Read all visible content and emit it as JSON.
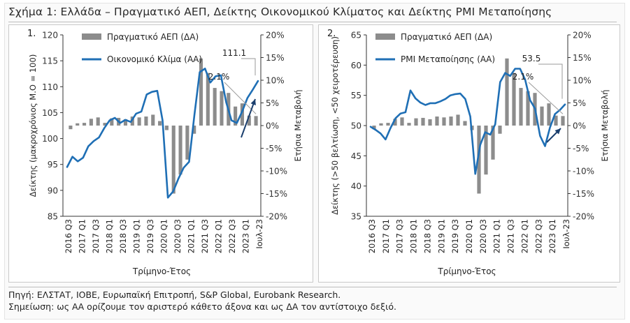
{
  "title": "Σχήμα 1: Ελλάδα – Πραγματικό ΑΕΠ, Δείκτης Οικονομικού Κλίματος και Δείκτης PMI Μεταποίησης",
  "source": "Πηγή: ΕΛΣΤΑΤ, ΙΟΒΕ, Ευρωπαϊκή Επιτροπή, S&P Global, Eurobank Research.",
  "note": "Σημείωση: ως ΑΑ ορίζουμε τον αριστερό κάθετο άξονα και ως ΔΑ τον αντίστοιχο δεξιό.",
  "colors": {
    "bars": "#8c8c8c",
    "line": "#1f6fb5",
    "arrow": "#1b3f6e",
    "grid": "#999999"
  },
  "chart_data": [
    {
      "type": "bar+line",
      "panel_label": "1.",
      "xlabel": "Τρίμηνο-Έτος",
      "ylabel_left": "Δείκτης (μακροχρόνιος Μ.Ο = 100)",
      "ylabel_right": "Ετήσια Μεταβολή",
      "ylim_left": [
        85,
        120
      ],
      "ylim_right": [
        -20,
        20
      ],
      "yticks_left": [
        "85",
        "90",
        "95",
        "100",
        "105",
        "110",
        "115",
        "120"
      ],
      "yticks_right": [
        "-20%",
        "-15%",
        "-10%",
        "-5%",
        "0%",
        "5%",
        "10%",
        "15%",
        "20%"
      ],
      "xtick_labels": [
        "2016 Q3",
        "2017 Q1",
        "2017 Q3",
        "2018 Q1",
        "2018 Q3",
        "2019 Q1",
        "2019 Q3",
        "2020 Q1",
        "2020 Q3",
        "2021 Q1",
        "2021 Q3",
        "2022 Q1",
        "2022 Q3",
        "2023 Q1",
        "Ιουλ-23"
      ],
      "legend": [
        "Πραγματικό ΑΕΠ (ΔΑ)",
        "Οικονομικό Κλίμα (ΑΑ)"
      ],
      "annotations": [
        "111.1",
        "2.1%"
      ],
      "bar_series": {
        "name": "Πραγματικό ΑΕΠ (ΔΑ)",
        "periods": [
          "2016 Q3",
          "2016 Q4",
          "2017 Q1",
          "2017 Q2",
          "2017 Q3",
          "2017 Q4",
          "2018 Q1",
          "2018 Q2",
          "2018 Q3",
          "2018 Q4",
          "2019 Q1",
          "2019 Q2",
          "2019 Q3",
          "2019 Q4",
          "2020 Q1",
          "2020 Q2",
          "2020 Q3",
          "2020 Q4",
          "2021 Q1",
          "2021 Q2",
          "2021 Q3",
          "2021 Q4",
          "2022 Q1",
          "2022 Q2",
          "2022 Q3",
          "2022 Q4",
          "2023 Q1",
          "2023 Q2"
        ],
        "values": [
          -0.8,
          0.5,
          0.6,
          1.5,
          1.8,
          0.6,
          1.6,
          1.7,
          1.4,
          2.0,
          1.8,
          2.0,
          2.4,
          1.0,
          -1.0,
          -15.0,
          -10.8,
          -7.5,
          -1.8,
          14.8,
          11.6,
          8.3,
          7.6,
          7.2,
          4.2,
          4.9,
          2.2,
          2.1
        ]
      },
      "line_series": {
        "name": "Οικονομικό Κλίμα (ΑΑ)",
        "values": [
          94.5,
          96.5,
          95.6,
          96.3,
          98.5,
          99.5,
          100.2,
          102.0,
          103.5,
          104.0,
          103.0,
          103.6,
          103.2,
          104.8,
          105.2,
          108.5,
          109.0,
          109.2,
          103.5,
          88.6,
          89.8,
          92.3,
          94.4,
          95.5,
          104.5,
          112.8,
          113.5,
          110.8,
          112.0,
          112.2,
          107.0,
          103.5,
          103.0,
          105.2,
          107.8,
          109.4,
          111.1
        ]
      }
    },
    {
      "type": "bar+line",
      "panel_label": "2.",
      "xlabel": "Τρίμηνο-Έτος",
      "ylabel_left": "Δείκτης (>50 βελτίωση, <50 χειροτέρευση)",
      "ylabel_right": "Ετήσια Μεταβολή",
      "ylim_left": [
        35,
        65
      ],
      "ylim_right": [
        -20,
        20
      ],
      "yticks_left": [
        "35",
        "40",
        "45",
        "50",
        "55",
        "60",
        "65"
      ],
      "yticks_right": [
        "-20%",
        "-15%",
        "-10%",
        "-5%",
        "0%",
        "5%",
        "10%",
        "15%",
        "20%"
      ],
      "xtick_labels": [
        "2016 Q3",
        "2017 Q1",
        "2017 Q3",
        "2018 Q1",
        "2018 Q3",
        "2019 Q1",
        "2019 Q3",
        "2020 Q1",
        "2020 Q3",
        "2021 Q1",
        "2021 Q3",
        "2022 Q1",
        "2022 Q3",
        "2023 Q1",
        "Ιουλ-23"
      ],
      "legend": [
        "Πραγματικό ΑΕΠ (ΔΑ)",
        "PMI Μεταποίησης (ΑΑ)"
      ],
      "annotations": [
        "53.5",
        "2.1%"
      ],
      "bar_series": {
        "name": "Πραγματικό ΑΕΠ (ΔΑ)",
        "periods": [
          "2016 Q3",
          "2016 Q4",
          "2017 Q1",
          "2017 Q2",
          "2017 Q3",
          "2017 Q4",
          "2018 Q1",
          "2018 Q2",
          "2018 Q3",
          "2018 Q4",
          "2019 Q1",
          "2019 Q2",
          "2019 Q3",
          "2019 Q4",
          "2020 Q1",
          "2020 Q2",
          "2020 Q3",
          "2020 Q4",
          "2021 Q1",
          "2021 Q2",
          "2021 Q3",
          "2021 Q4",
          "2022 Q1",
          "2022 Q2",
          "2022 Q3",
          "2022 Q4",
          "2023 Q1",
          "2023 Q2"
        ],
        "values": [
          -0.8,
          0.5,
          0.6,
          1.5,
          1.8,
          0.6,
          1.6,
          1.7,
          1.4,
          2.0,
          1.8,
          2.0,
          2.4,
          1.0,
          -1.0,
          -15.0,
          -10.8,
          -7.5,
          -1.8,
          14.8,
          11.6,
          8.3,
          7.6,
          7.2,
          4.2,
          4.9,
          2.2,
          2.1
        ]
      },
      "line_series": {
        "name": "PMI Μεταποίησης (ΑΑ)",
        "values": [
          49.8,
          49.3,
          48.7,
          47.7,
          49.6,
          51.2,
          52.0,
          52.2,
          55.8,
          54.5,
          53.8,
          53.4,
          53.7,
          53.7,
          54.0,
          54.4,
          55.0,
          55.2,
          55.3,
          54.4,
          51.5,
          42.0,
          46.8,
          48.9,
          48.5,
          50.2,
          57.2,
          58.7,
          58.2,
          59.4,
          59.4,
          57.6,
          54.2,
          52.8,
          48.3,
          46.6,
          49.7,
          51.9,
          52.6,
          53.5
        ]
      }
    }
  ]
}
